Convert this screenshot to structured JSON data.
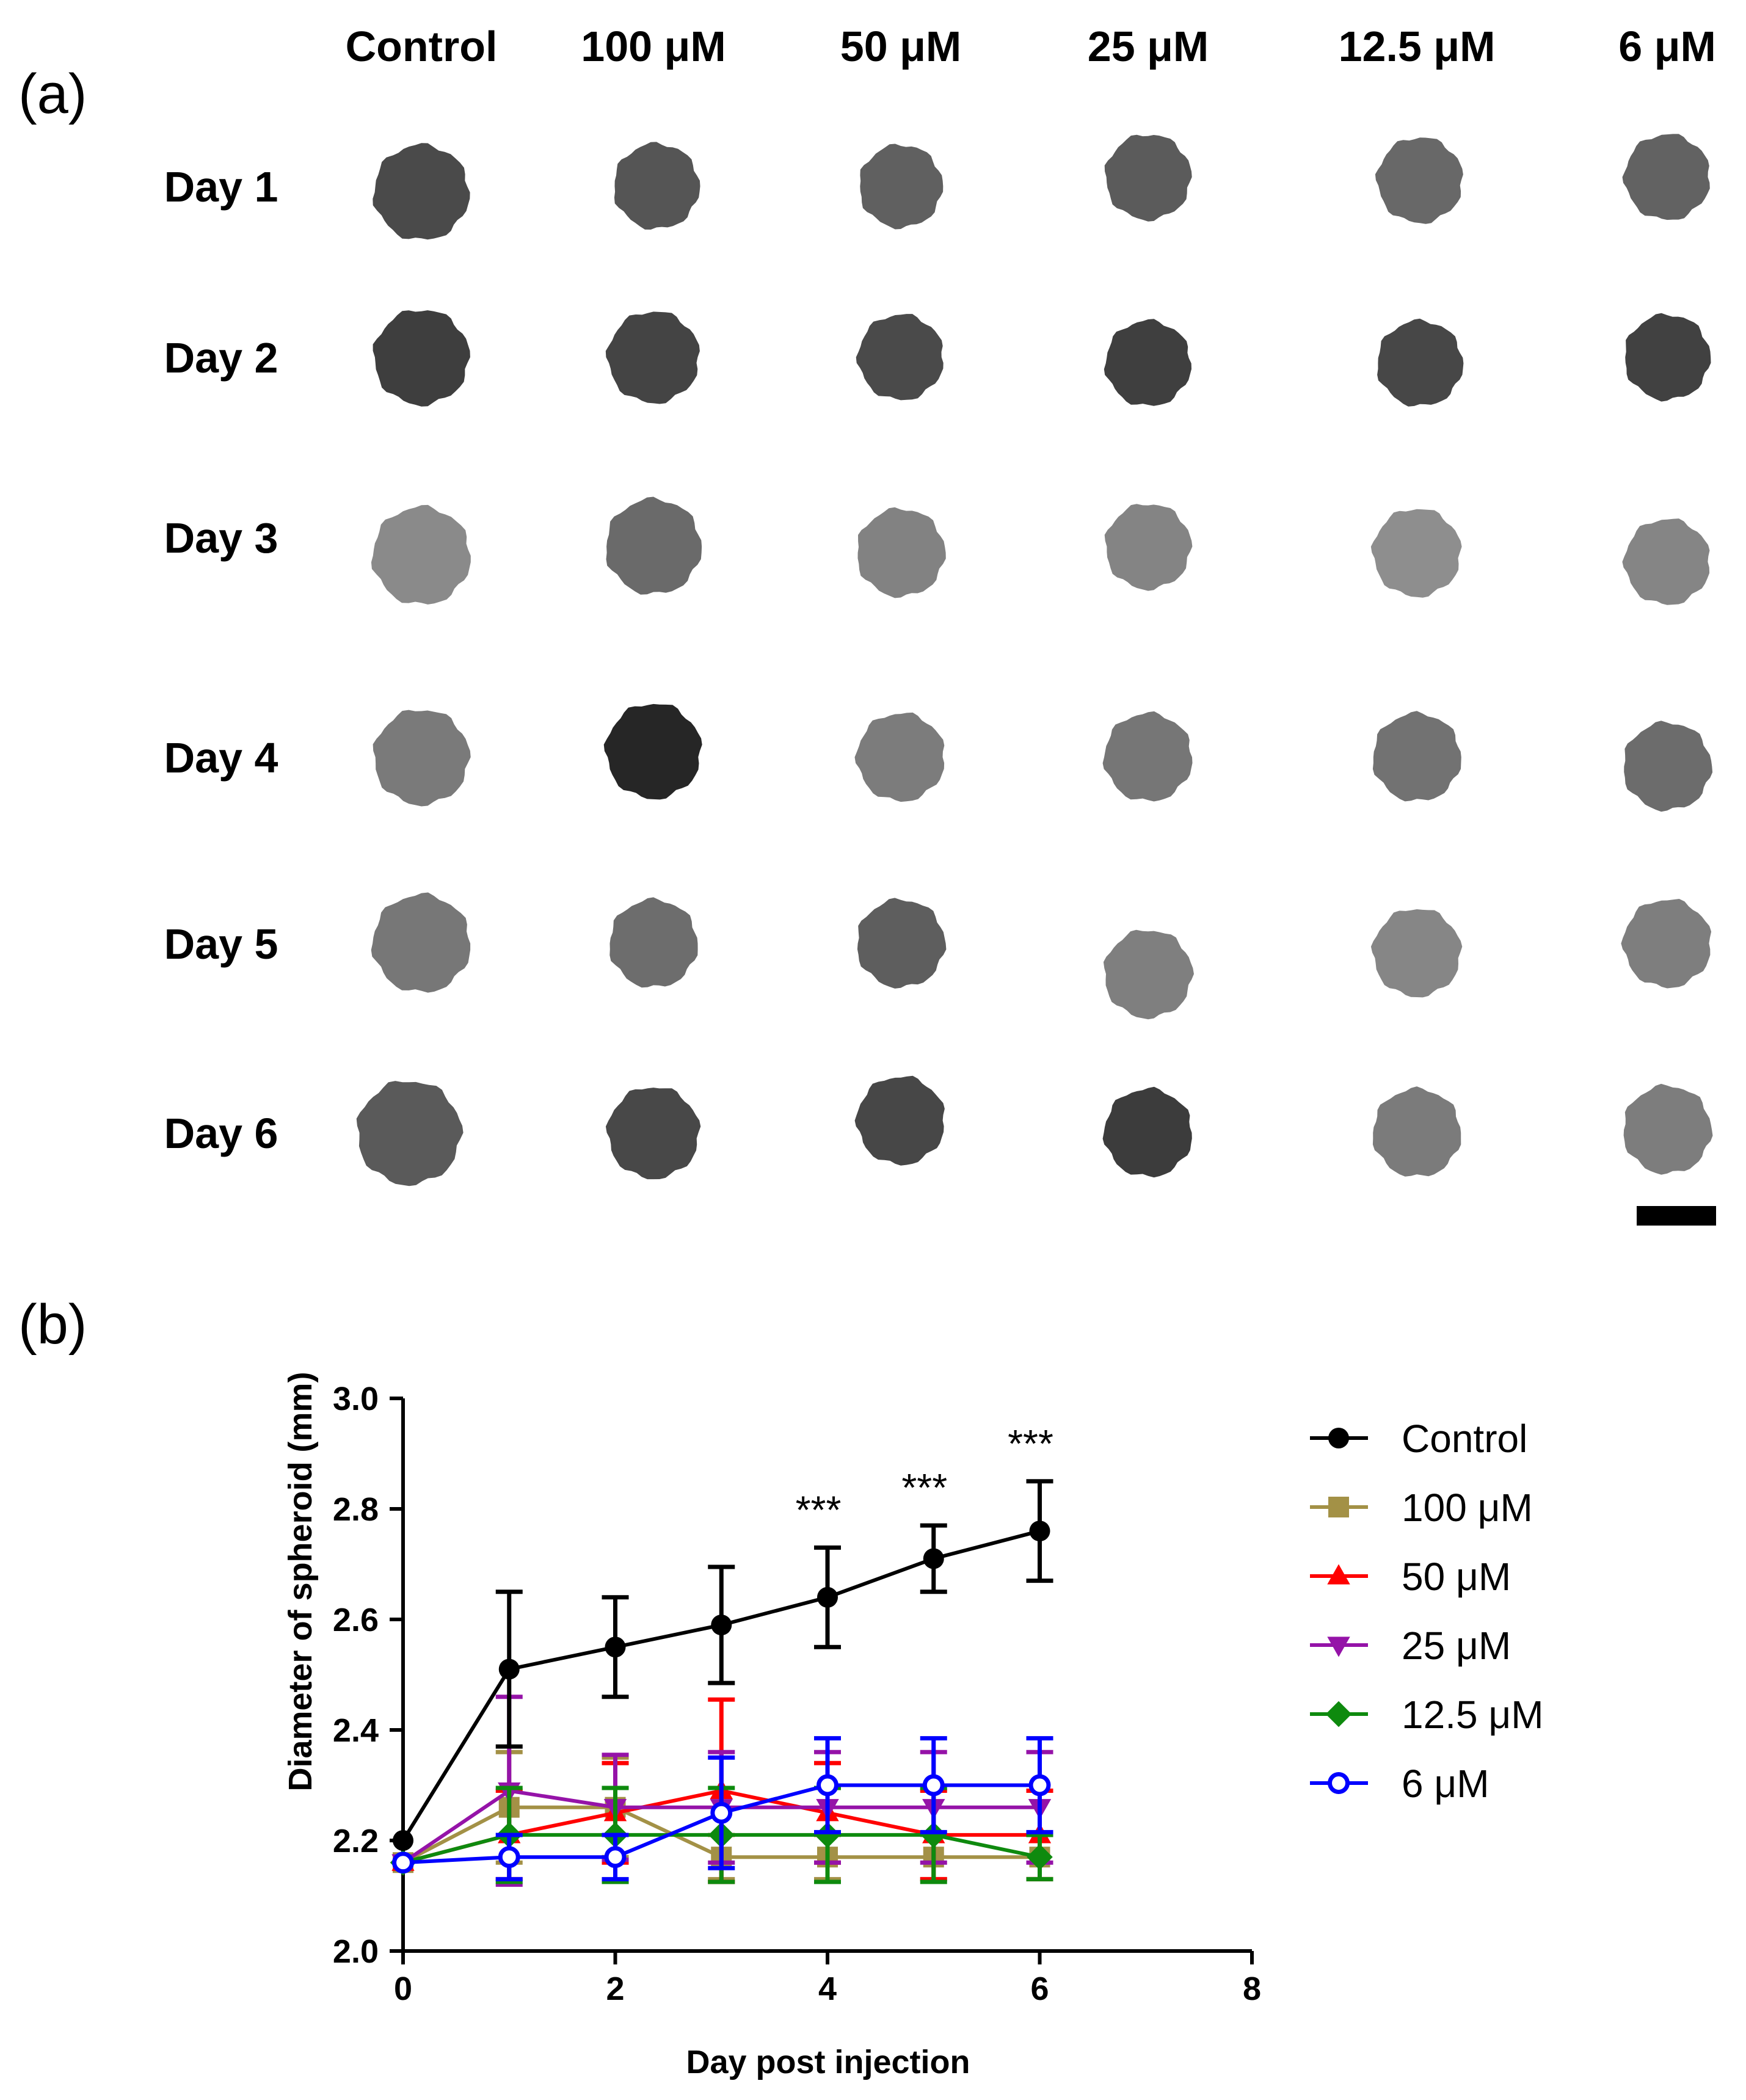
{
  "panel_a": {
    "label": "(a)",
    "columns": [
      "Control",
      "100 μM",
      "50 μM",
      "25 μM",
      "12.5 μM",
      "6 μM"
    ],
    "rows": [
      "Day 1",
      "Day 2",
      "Day 3",
      "Day 4",
      "Day 5",
      "Day 6"
    ],
    "spheroid_gray": [
      [
        "#4a4a4a",
        "#555555",
        "#606060",
        "#5b5b5b",
        "#686868",
        "#626262"
      ],
      [
        "#3e3e3e",
        "#444444",
        "#4a4a4a",
        "#3f3f3f",
        "#474747",
        "#414141"
      ],
      [
        "#8a8a8a",
        "#6a6a6a",
        "#828282",
        "#848484",
        "#8e8e8e",
        "#858585"
      ],
      [
        "#7a7a7a",
        "#262626",
        "#7c7c7c",
        "#767676",
        "#727272",
        "#6c6c6c"
      ],
      [
        "#777777",
        "#6d6d6d",
        "#5e5e5e",
        "#7f7f7f",
        "#868686",
        "#7e7e7e"
      ],
      [
        "#5a5a5a",
        "#484848",
        "#474747",
        "#3c3c3c",
        "#7b7b7b",
        "#7d7d7d"
      ]
    ]
  },
  "panel_b": {
    "label": "(b)"
  },
  "chart_data": {
    "type": "line",
    "title": "",
    "xlabel": "Day post injection",
    "ylabel": "Diameter of spheroid (mm)",
    "xlim": [
      0,
      8
    ],
    "ylim": [
      2.0,
      3.0
    ],
    "xticks": [
      0,
      2,
      4,
      6,
      8
    ],
    "yticks": [
      2.0,
      2.2,
      2.4,
      2.6,
      2.8,
      3.0
    ],
    "x": [
      0,
      1,
      2,
      3,
      4,
      5,
      6
    ],
    "series": [
      {
        "name": "Control",
        "color": "#000000",
        "marker": "circle-filled",
        "values": [
          2.2,
          2.51,
          2.55,
          2.59,
          2.64,
          2.71,
          2.76
        ],
        "errors": [
          0,
          0.14,
          0.09,
          0.105,
          0.09,
          0.06,
          0.09
        ]
      },
      {
        "name": "100 μM",
        "color": "#a39146",
        "marker": "square",
        "values": [
          2.16,
          2.26,
          2.26,
          2.17,
          2.17,
          2.17,
          2.17
        ],
        "errors": [
          0,
          0.1,
          0.09,
          0.04,
          0.04,
          0.04,
          0.04
        ]
      },
      {
        "name": "50 μM",
        "color": "#ff0000",
        "marker": "triangle-up",
        "values": [
          2.16,
          2.21,
          2.25,
          2.29,
          2.25,
          2.21,
          2.21
        ],
        "errors": [
          0,
          0.08,
          0.09,
          0.165,
          0.09,
          0.08,
          0.08
        ]
      },
      {
        "name": "25 μM",
        "color": "#9513a8",
        "marker": "triangle-down",
        "values": [
          2.16,
          2.29,
          2.26,
          2.26,
          2.26,
          2.26,
          2.26
        ],
        "errors": [
          0,
          0.17,
          0.095,
          0.1,
          0.1,
          0.1,
          0.1
        ]
      },
      {
        "name": "12.5 μM",
        "color": "#0e8a0e",
        "marker": "diamond",
        "values": [
          2.16,
          2.21,
          2.21,
          2.21,
          2.21,
          2.21,
          2.17
        ],
        "errors": [
          0,
          0.085,
          0.085,
          0.085,
          0.085,
          0.085,
          0.04
        ]
      },
      {
        "name": "6 μM",
        "color": "#0000ff",
        "marker": "circle-open",
        "values": [
          2.16,
          2.17,
          2.17,
          2.25,
          2.3,
          2.3,
          2.3
        ],
        "errors": [
          0,
          0.04,
          0.04,
          0.1,
          0.085,
          0.085,
          0.085
        ]
      }
    ],
    "annotations": [
      {
        "x": 4,
        "text": "***"
      },
      {
        "x": 5,
        "text": "***"
      },
      {
        "x": 6,
        "text": "***"
      }
    ],
    "legend": "right"
  }
}
